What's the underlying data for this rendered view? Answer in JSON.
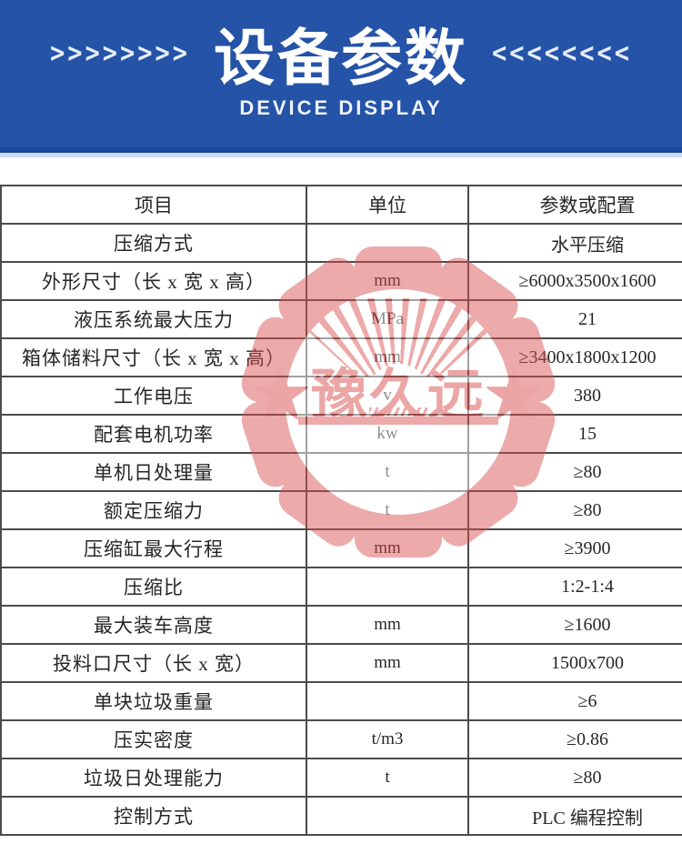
{
  "header": {
    "title": "设备参数",
    "subtitle": "DEVICE DISPLAY",
    "arrows_left": ">>>>>>>>",
    "arrows_right": "<<<<<<<<",
    "bg_color": "#2453a7"
  },
  "watermark": {
    "text": "★豫久远★",
    "color": "#d84f4f"
  },
  "table": {
    "columns": [
      "项目",
      "单位",
      "参数或配置"
    ],
    "rows": [
      {
        "item": "压缩方式",
        "unit": "",
        "value": "水平压缩"
      },
      {
        "item": "外形尺寸（长 x 宽 x 高）",
        "unit": "mm",
        "value": "≥6000x3500x1600"
      },
      {
        "item": "液压系统最大压力",
        "unit": "MPa",
        "value": "21"
      },
      {
        "item": "箱体储料尺寸（长 x 宽 x 高）",
        "unit": "mm",
        "value": "≥3400x1800x1200"
      },
      {
        "item": "工作电压",
        "unit": "v",
        "value": "380"
      },
      {
        "item": "配套电机功率",
        "unit": "kw",
        "value": "15"
      },
      {
        "item": "单机日处理量",
        "unit": "t",
        "value": "≥80"
      },
      {
        "item": "额定压缩力",
        "unit": "t",
        "value": "≥80"
      },
      {
        "item": "压缩缸最大行程",
        "unit": "mm",
        "value": "≥3900"
      },
      {
        "item": "压缩比",
        "unit": "",
        "value": "1:2-1:4"
      },
      {
        "item": "最大装车高度",
        "unit": "mm",
        "value": "≥1600"
      },
      {
        "item": "投料口尺寸（长 x 宽）",
        "unit": "mm",
        "value": "1500x700"
      },
      {
        "item": "单块垃圾重量",
        "unit": "",
        "value": "≥6"
      },
      {
        "item": "压实密度",
        "unit": "t/m3",
        "value": "≥0.86"
      },
      {
        "item": "垃圾日处理能力",
        "unit": "t",
        "value": "≥80"
      },
      {
        "item": "控制方式",
        "unit": "",
        "value": "PLC 编程控制"
      }
    ]
  }
}
